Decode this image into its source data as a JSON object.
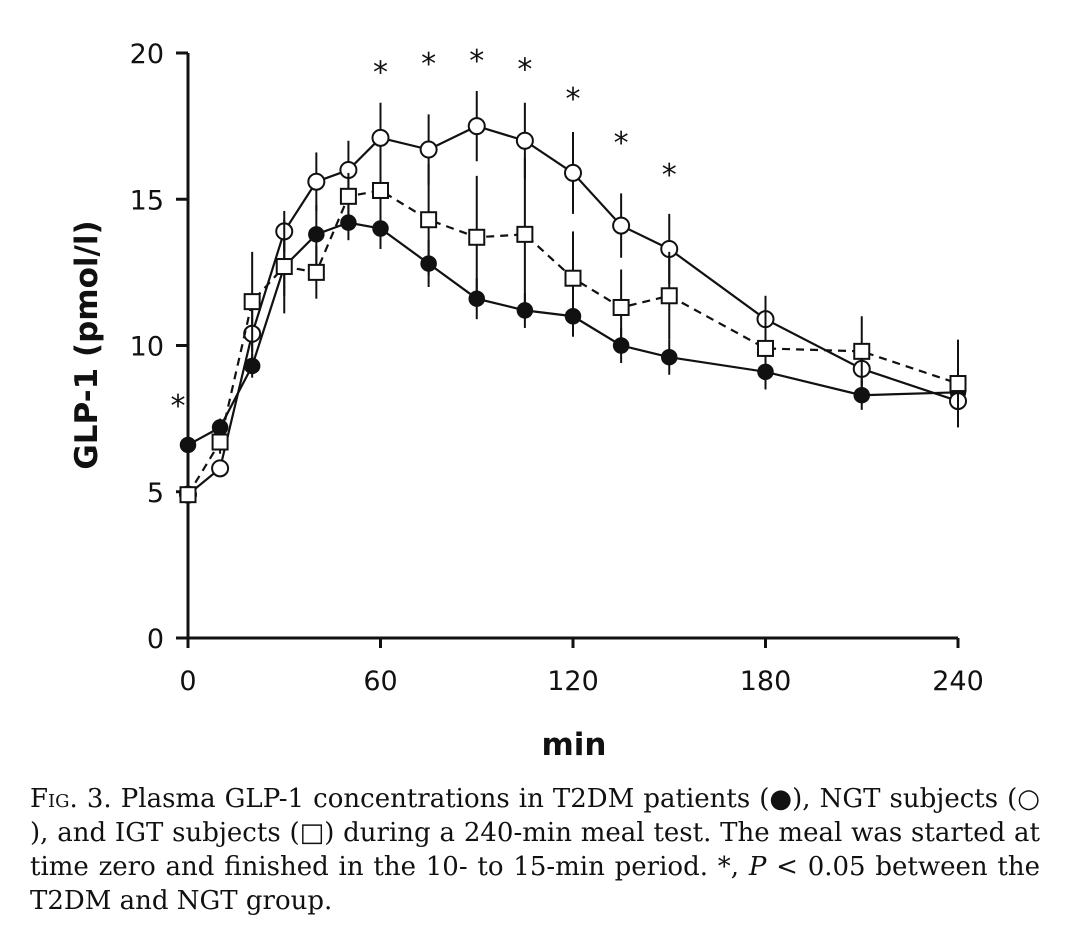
{
  "chart_data": {
    "type": "line",
    "title": "",
    "xlabel": "min",
    "ylabel": "GLP-1 (pmol/l)",
    "xlim": [
      0,
      240
    ],
    "ylim": [
      0,
      20
    ],
    "xticks": [
      0,
      60,
      120,
      180,
      240
    ],
    "yticks": [
      0,
      5,
      10,
      15,
      20
    ],
    "grid": false,
    "legend": "none (symbols explained in caption)",
    "series": [
      {
        "marker": "filled-circle",
        "line": "solid",
        "x": [
          0,
          10,
          20,
          30,
          40,
          50,
          60,
          75,
          90,
          105,
          120,
          135,
          150,
          180,
          210,
          240
        ],
        "y": [
          6.6,
          7.2,
          9.3,
          12.7,
          13.8,
          14.2,
          14.0,
          12.8,
          11.6,
          11.2,
          11.0,
          10.0,
          9.6,
          9.1,
          8.3,
          8.4
        ],
        "err": [
          0.0,
          0.3,
          0.4,
          1.0,
          1.0,
          0.6,
          0.7,
          0.8,
          0.7,
          0.6,
          0.7,
          0.6,
          0.6,
          0.6,
          0.5,
          0.0
        ]
      },
      {
        "marker": "open-circle",
        "line": "solid",
        "x": [
          0,
          10,
          20,
          30,
          40,
          50,
          60,
          75,
          90,
          105,
          120,
          135,
          150,
          180,
          210,
          240
        ],
        "y": [
          4.9,
          5.8,
          10.4,
          13.9,
          15.6,
          16.0,
          17.1,
          16.7,
          17.5,
          17.0,
          15.9,
          14.1,
          13.3,
          10.9,
          9.2,
          8.1
        ],
        "err": [
          0.0,
          0.3,
          0.9,
          0.7,
          1.0,
          1.0,
          1.2,
          1.2,
          1.2,
          1.3,
          1.4,
          1.1,
          1.2,
          0.8,
          0.6,
          0.7
        ]
      },
      {
        "marker": "open-square",
        "line": "dashed",
        "x": [
          0,
          10,
          20,
          30,
          40,
          50,
          60,
          75,
          90,
          105,
          120,
          135,
          150,
          180,
          210,
          240
        ],
        "y": [
          4.9,
          6.7,
          11.5,
          12.7,
          12.5,
          15.1,
          15.3,
          14.3,
          13.7,
          13.8,
          12.3,
          11.3,
          11.7,
          9.9,
          9.8,
          8.7
        ],
        "err": [
          0.0,
          0.4,
          1.7,
          1.6,
          0.9,
          0.8,
          1.3,
          1.9,
          2.1,
          2.6,
          1.6,
          1.3,
          1.5,
          1.4,
          1.2,
          1.5
        ]
      }
    ],
    "significance": {
      "symbol": "*",
      "x": [
        0,
        60,
        75,
        90,
        105,
        120,
        135,
        150
      ],
      "y": [
        8.1,
        19.5,
        19.8,
        19.9,
        19.6,
        18.6,
        17.1,
        16.0
      ]
    }
  },
  "caption": {
    "fig_label": "Fig. 3.",
    "part1": " Plasma GLP-1 concentrations in T2DM patients (",
    "symbol_filled_circle": "●",
    "part2": "), NGT subjects (",
    "symbol_open_circle": "○",
    "part3": "), and IGT subjects (",
    "symbol_open_square": "□",
    "part4": ") during a 240-min meal test. The meal was started at time zero and finished in the 10- to 15-min period. *, ",
    "p_symbol": "P",
    "part5": " < 0.05 between the T2DM and NGT group."
  }
}
